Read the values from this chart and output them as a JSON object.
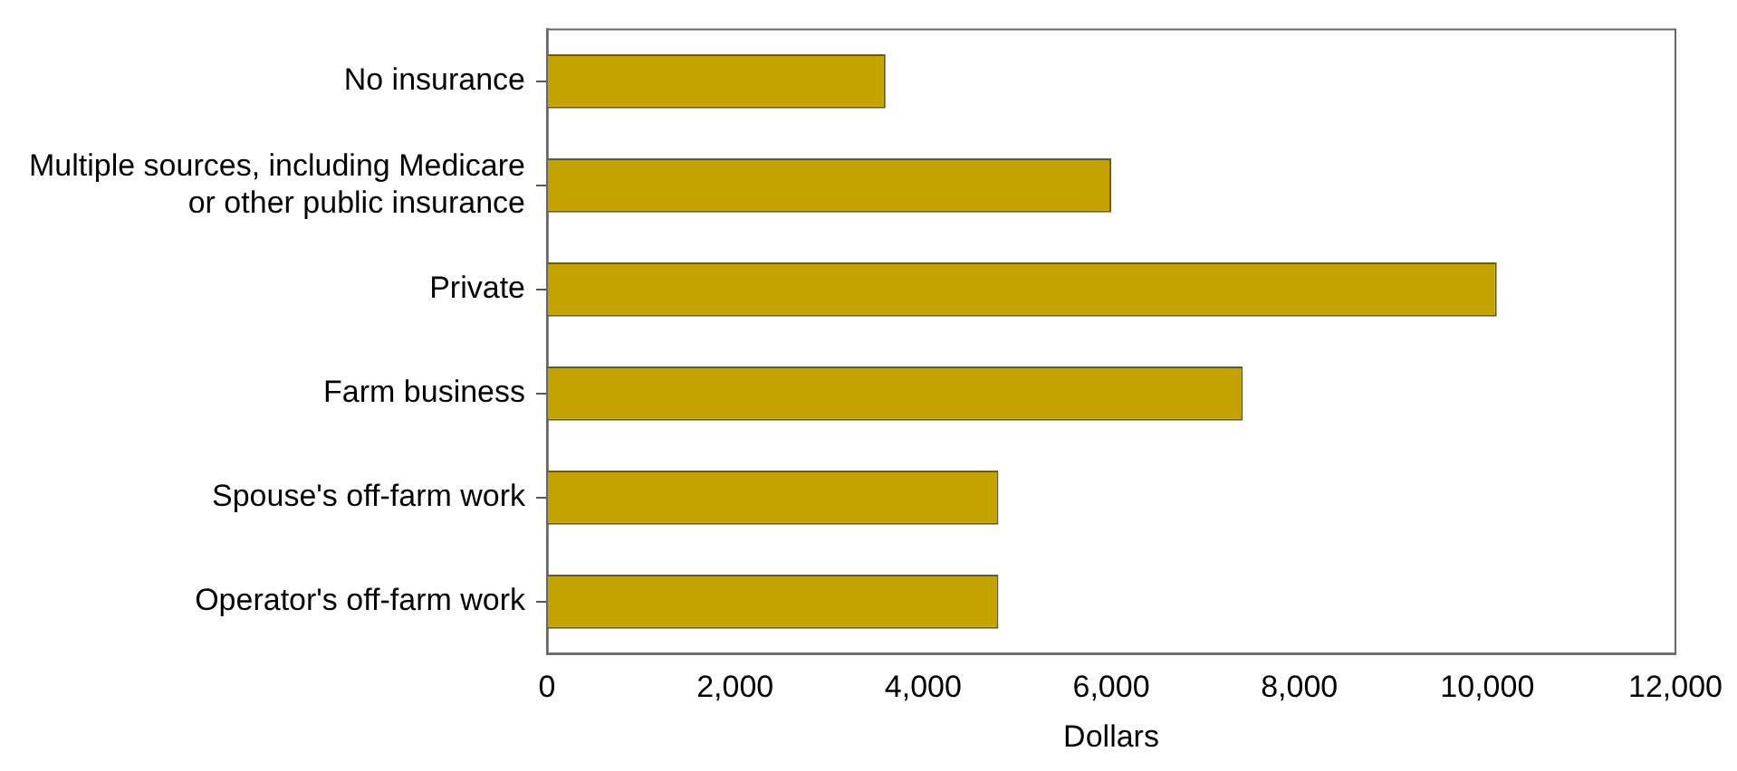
{
  "chart_data": {
    "type": "bar",
    "orientation": "horizontal",
    "xlabel": "Dollars",
    "categories": [
      "No insurance",
      "Multiple sources, including Medicare or other public insurance",
      "Private",
      "Farm business",
      "Spouse's off-farm work",
      "Operator's off-farm work"
    ],
    "values": [
      3600,
      6000,
      10100,
      7400,
      4800,
      4800
    ],
    "color": "#c4a200",
    "xlim": [
      0,
      12000
    ],
    "xticks": [
      0,
      {
        "value": 2000,
        "label": "2,000"
      },
      {
        "value": 4000,
        "label": "4,000"
      },
      {
        "value": 6000,
        "label": "6,000"
      },
      {
        "value": 8000,
        "label": "8,000"
      },
      {
        "value": 10000,
        "label": "10,000"
      },
      {
        "value": 12000,
        "label": "12,000"
      }
    ],
    "grid": false,
    "legend": false
  }
}
